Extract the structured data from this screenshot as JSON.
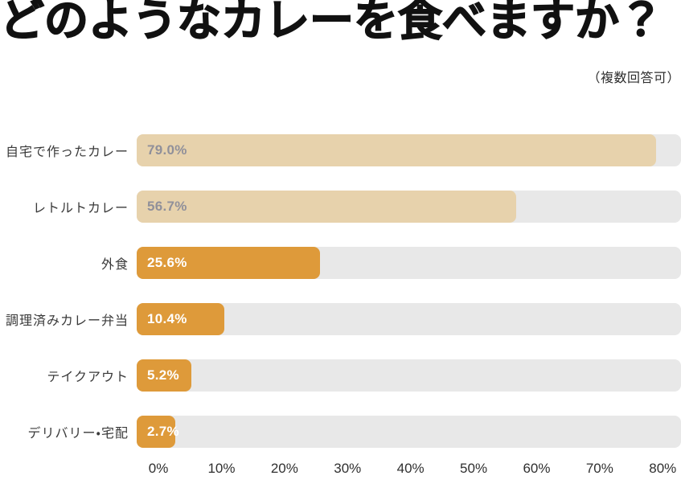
{
  "header": {
    "title": "どのようなカレーを食べますか？",
    "note": "（複数回答可）"
  },
  "chart_data": {
    "type": "bar",
    "orientation": "horizontal",
    "title": "どのようなカレーを食べますか？",
    "subtitle": "（複数回答可）",
    "categories": [
      "自宅で作ったカレー",
      "レトルトカレー",
      "外食",
      "調理済みカレー弁当",
      "テイクアウト",
      "デリバリー・宅配"
    ],
    "values": [
      79.0,
      56.7,
      25.6,
      10.4,
      5.2,
      2.7
    ],
    "value_labels": [
      "79.0%",
      "56.7%",
      "25.6%",
      "10.4%",
      "5.2%",
      "2.7%"
    ],
    "bar_styles": [
      "beige",
      "beige",
      "orange",
      "orange",
      "orange",
      "orange"
    ],
    "x_tick_labels": [
      "0%",
      "10%",
      "20%",
      "30%",
      "40%",
      "50%",
      "60%",
      "70%",
      "80%"
    ],
    "xlim": [
      0,
      80
    ],
    "grid": false,
    "legend": false,
    "colors": {
      "beige_bar": "#e7d2ac",
      "orange_bar": "#de9a3a",
      "track": "#e8e8e8",
      "value_text_on_beige": "#90909a",
      "value_text_on_orange": "#ffffff",
      "title_text": "#111111",
      "category_text": "#3a3a3a",
      "axis_text": "#2f2f2f"
    }
  }
}
